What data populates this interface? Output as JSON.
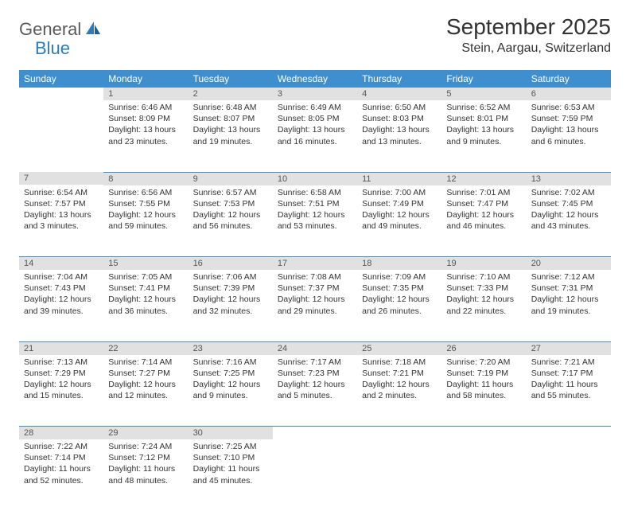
{
  "logo": {
    "general": "General",
    "blue": "Blue"
  },
  "title": "September 2025",
  "location": "Stein, Aargau, Switzerland",
  "colors": {
    "header_bg": "#3f8fcf",
    "header_fg": "#ffffff",
    "daynum_bg": "#e1e1e1",
    "daynum_fg": "#555555",
    "rule": "#3f8fcf",
    "text": "#333333",
    "logo_gray": "#5a5a5a",
    "logo_blue": "#2b7bbf",
    "page_bg": "#ffffff"
  },
  "daysOfWeek": [
    "Sunday",
    "Monday",
    "Tuesday",
    "Wednesday",
    "Thursday",
    "Friday",
    "Saturday"
  ],
  "weeks": [
    [
      {
        "n": "",
        "sr": "",
        "ss": "",
        "dl": ""
      },
      {
        "n": "1",
        "sr": "Sunrise: 6:46 AM",
        "ss": "Sunset: 8:09 PM",
        "dl": "Daylight: 13 hours and 23 minutes."
      },
      {
        "n": "2",
        "sr": "Sunrise: 6:48 AM",
        "ss": "Sunset: 8:07 PM",
        "dl": "Daylight: 13 hours and 19 minutes."
      },
      {
        "n": "3",
        "sr": "Sunrise: 6:49 AM",
        "ss": "Sunset: 8:05 PM",
        "dl": "Daylight: 13 hours and 16 minutes."
      },
      {
        "n": "4",
        "sr": "Sunrise: 6:50 AM",
        "ss": "Sunset: 8:03 PM",
        "dl": "Daylight: 13 hours and 13 minutes."
      },
      {
        "n": "5",
        "sr": "Sunrise: 6:52 AM",
        "ss": "Sunset: 8:01 PM",
        "dl": "Daylight: 13 hours and 9 minutes."
      },
      {
        "n": "6",
        "sr": "Sunrise: 6:53 AM",
        "ss": "Sunset: 7:59 PM",
        "dl": "Daylight: 13 hours and 6 minutes."
      }
    ],
    [
      {
        "n": "7",
        "sr": "Sunrise: 6:54 AM",
        "ss": "Sunset: 7:57 PM",
        "dl": "Daylight: 13 hours and 3 minutes."
      },
      {
        "n": "8",
        "sr": "Sunrise: 6:56 AM",
        "ss": "Sunset: 7:55 PM",
        "dl": "Daylight: 12 hours and 59 minutes."
      },
      {
        "n": "9",
        "sr": "Sunrise: 6:57 AM",
        "ss": "Sunset: 7:53 PM",
        "dl": "Daylight: 12 hours and 56 minutes."
      },
      {
        "n": "10",
        "sr": "Sunrise: 6:58 AM",
        "ss": "Sunset: 7:51 PM",
        "dl": "Daylight: 12 hours and 53 minutes."
      },
      {
        "n": "11",
        "sr": "Sunrise: 7:00 AM",
        "ss": "Sunset: 7:49 PM",
        "dl": "Daylight: 12 hours and 49 minutes."
      },
      {
        "n": "12",
        "sr": "Sunrise: 7:01 AM",
        "ss": "Sunset: 7:47 PM",
        "dl": "Daylight: 12 hours and 46 minutes."
      },
      {
        "n": "13",
        "sr": "Sunrise: 7:02 AM",
        "ss": "Sunset: 7:45 PM",
        "dl": "Daylight: 12 hours and 43 minutes."
      }
    ],
    [
      {
        "n": "14",
        "sr": "Sunrise: 7:04 AM",
        "ss": "Sunset: 7:43 PM",
        "dl": "Daylight: 12 hours and 39 minutes."
      },
      {
        "n": "15",
        "sr": "Sunrise: 7:05 AM",
        "ss": "Sunset: 7:41 PM",
        "dl": "Daylight: 12 hours and 36 minutes."
      },
      {
        "n": "16",
        "sr": "Sunrise: 7:06 AM",
        "ss": "Sunset: 7:39 PM",
        "dl": "Daylight: 12 hours and 32 minutes."
      },
      {
        "n": "17",
        "sr": "Sunrise: 7:08 AM",
        "ss": "Sunset: 7:37 PM",
        "dl": "Daylight: 12 hours and 29 minutes."
      },
      {
        "n": "18",
        "sr": "Sunrise: 7:09 AM",
        "ss": "Sunset: 7:35 PM",
        "dl": "Daylight: 12 hours and 26 minutes."
      },
      {
        "n": "19",
        "sr": "Sunrise: 7:10 AM",
        "ss": "Sunset: 7:33 PM",
        "dl": "Daylight: 12 hours and 22 minutes."
      },
      {
        "n": "20",
        "sr": "Sunrise: 7:12 AM",
        "ss": "Sunset: 7:31 PM",
        "dl": "Daylight: 12 hours and 19 minutes."
      }
    ],
    [
      {
        "n": "21",
        "sr": "Sunrise: 7:13 AM",
        "ss": "Sunset: 7:29 PM",
        "dl": "Daylight: 12 hours and 15 minutes."
      },
      {
        "n": "22",
        "sr": "Sunrise: 7:14 AM",
        "ss": "Sunset: 7:27 PM",
        "dl": "Daylight: 12 hours and 12 minutes."
      },
      {
        "n": "23",
        "sr": "Sunrise: 7:16 AM",
        "ss": "Sunset: 7:25 PM",
        "dl": "Daylight: 12 hours and 9 minutes."
      },
      {
        "n": "24",
        "sr": "Sunrise: 7:17 AM",
        "ss": "Sunset: 7:23 PM",
        "dl": "Daylight: 12 hours and 5 minutes."
      },
      {
        "n": "25",
        "sr": "Sunrise: 7:18 AM",
        "ss": "Sunset: 7:21 PM",
        "dl": "Daylight: 12 hours and 2 minutes."
      },
      {
        "n": "26",
        "sr": "Sunrise: 7:20 AM",
        "ss": "Sunset: 7:19 PM",
        "dl": "Daylight: 11 hours and 58 minutes."
      },
      {
        "n": "27",
        "sr": "Sunrise: 7:21 AM",
        "ss": "Sunset: 7:17 PM",
        "dl": "Daylight: 11 hours and 55 minutes."
      }
    ],
    [
      {
        "n": "28",
        "sr": "Sunrise: 7:22 AM",
        "ss": "Sunset: 7:14 PM",
        "dl": "Daylight: 11 hours and 52 minutes."
      },
      {
        "n": "29",
        "sr": "Sunrise: 7:24 AM",
        "ss": "Sunset: 7:12 PM",
        "dl": "Daylight: 11 hours and 48 minutes."
      },
      {
        "n": "30",
        "sr": "Sunrise: 7:25 AM",
        "ss": "Sunset: 7:10 PM",
        "dl": "Daylight: 11 hours and 45 minutes."
      },
      {
        "n": "",
        "sr": "",
        "ss": "",
        "dl": ""
      },
      {
        "n": "",
        "sr": "",
        "ss": "",
        "dl": ""
      },
      {
        "n": "",
        "sr": "",
        "ss": "",
        "dl": ""
      },
      {
        "n": "",
        "sr": "",
        "ss": "",
        "dl": ""
      }
    ]
  ]
}
